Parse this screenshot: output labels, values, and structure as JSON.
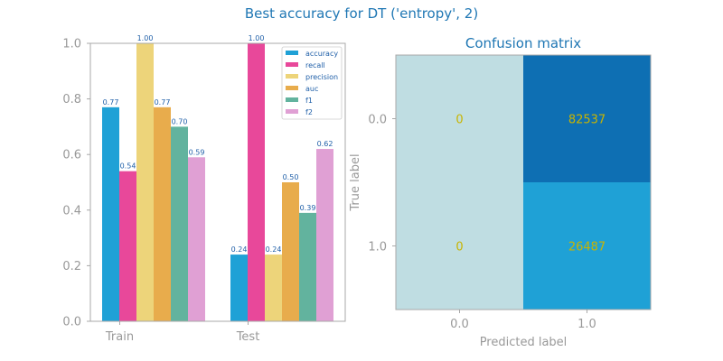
{
  "suptitle": "Best accuracy for DT ('entropy', 2)",
  "chart_data": [
    {
      "type": "bar",
      "title": "",
      "categories": [
        "Train",
        "Test"
      ],
      "ylim": [
        0.0,
        1.0
      ],
      "yticks": [
        "0.0",
        "0.2",
        "0.4",
        "0.6",
        "0.8",
        "1.0"
      ],
      "legend_position": "top-right",
      "grid": false,
      "series": [
        {
          "name": "accuracy",
          "color": "#1fa1d6",
          "values": [
            0.77,
            0.24
          ],
          "labels": [
            "0.77",
            "0.24"
          ]
        },
        {
          "name": "recall",
          "color": "#e8489a",
          "values": [
            0.54,
            1.0
          ],
          "labels": [
            "0.54",
            "1.00"
          ]
        },
        {
          "name": "precision",
          "color": "#edd47a",
          "values": [
            1.0,
            0.24
          ],
          "labels": [
            "1.00",
            "0.24"
          ]
        },
        {
          "name": "auc",
          "color": "#e8ac4c",
          "values": [
            0.77,
            0.5
          ],
          "labels": [
            "0.77",
            "0.50"
          ]
        },
        {
          "name": "f1",
          "color": "#62b39e",
          "values": [
            0.7,
            0.39
          ],
          "labels": [
            "0.70",
            "0.39"
          ]
        },
        {
          "name": "f2",
          "color": "#e0a0d4",
          "values": [
            0.59,
            0.62
          ],
          "labels": [
            "0.59",
            "0.62"
          ]
        }
      ]
    },
    {
      "type": "heatmap",
      "title": "Confusion matrix",
      "xlabel": "Predicted label",
      "ylabel": "True label",
      "x_ticks": [
        "0.0",
        "1.0"
      ],
      "y_ticks": [
        "0.0",
        "1.0"
      ],
      "values": [
        [
          0,
          82537
        ],
        [
          0,
          26487
        ]
      ],
      "labels": [
        [
          "0",
          "82537"
        ],
        [
          "0",
          "26487"
        ]
      ],
      "cell_colors": [
        [
          "#bfdde2",
          "#0e6fb3"
        ],
        [
          "#bfdde2",
          "#1fa1d6"
        ]
      ]
    }
  ]
}
